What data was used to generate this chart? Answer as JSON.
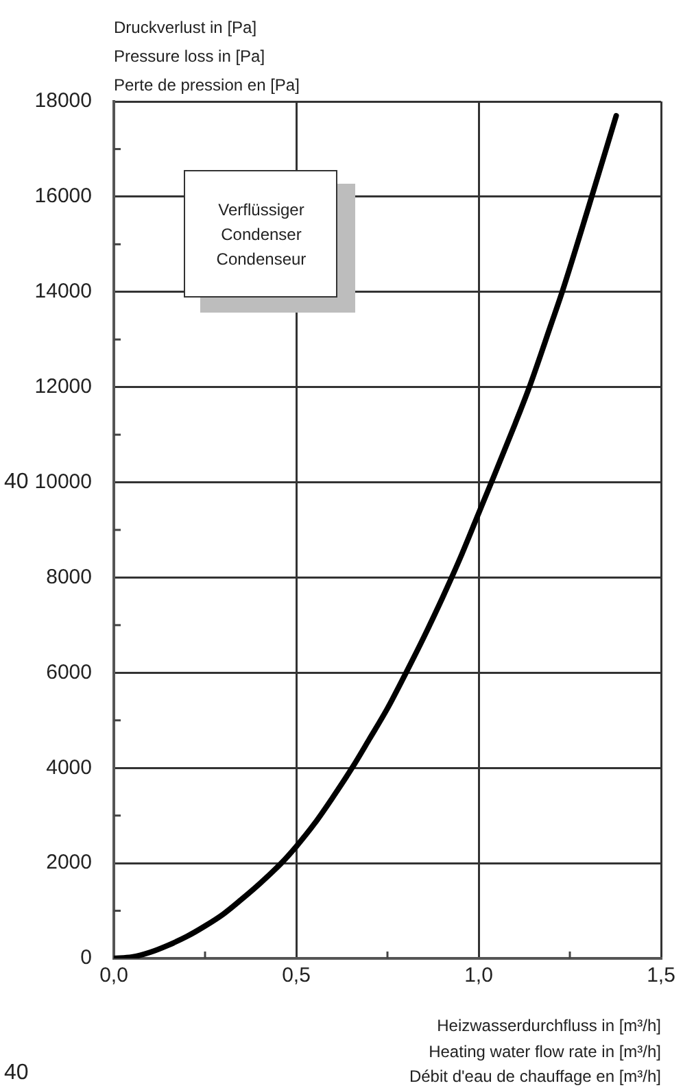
{
  "chart_data": {
    "type": "line",
    "ylabel": "Druckverlust in [Pa]\nPressure loss in [Pa]\nPerte de pression en [Pa]",
    "xlabel": "Heizwasserdurchfluss in [m³/h]\nHeating water flow rate in [m³/h]\nDébit d'eau de chauffage en [m³/h]",
    "x": [
      0,
      0.05,
      0.1,
      0.15,
      0.2,
      0.25,
      0.3,
      0.35,
      0.4,
      0.459,
      0.5,
      0.55,
      0.6,
      0.653,
      0.7,
      0.75,
      0.801,
      0.85,
      0.9,
      0.926,
      0.95,
      1.0,
      1.035,
      1.1,
      1.139,
      1.2,
      1.229,
      1.3,
      1.377
    ],
    "series": [
      {
        "color": "#000000",
        "values": [
          0,
          30,
          130,
          280,
          460,
          680,
          930,
          1240,
          1570,
          2000,
          2350,
          2830,
          3380,
          4000,
          4600,
          5250,
          6000,
          6750,
          7560,
          8000,
          8420,
          9350,
          10000,
          11230,
          12000,
          13350,
          14000,
          15750,
          17700
        ]
      }
    ],
    "xlim": [
      0,
      1.5
    ],
    "xticks": [
      {
        "value": 0,
        "label": "0,0"
      },
      {
        "value": 0.25,
        "label": null
      },
      {
        "value": 0.5,
        "label": "0,5"
      },
      {
        "value": 0.75,
        "label": null
      },
      {
        "value": 1.0,
        "label": "1,0"
      },
      {
        "value": 1.25,
        "label": null
      },
      {
        "value": 1.5,
        "label": "1,5"
      }
    ],
    "ylim": [
      0,
      18000
    ],
    "yticks": [
      0,
      {
        "value": 1000,
        "label": null
      },
      2000,
      {
        "value": 3000,
        "label": null
      },
      4000,
      {
        "value": 5000,
        "label": null
      },
      6000,
      {
        "value": 7000,
        "label": null
      },
      8000,
      {
        "value": 9000,
        "label": null
      },
      10000,
      {
        "value": 11000,
        "label": null
      },
      12000,
      {
        "value": 13000,
        "label": null
      },
      14000,
      {
        "value": 15000,
        "label": null
      },
      16000,
      {
        "value": 17000,
        "label": null
      },
      18000
    ],
    "grid": true,
    "annotations": [
      "Verflüssiger\nCondenser\nCondenseur",
      "40",
      "40"
    ]
  }
}
